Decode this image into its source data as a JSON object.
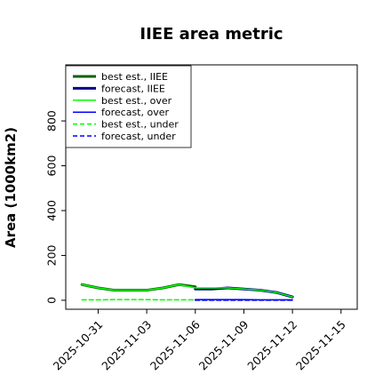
{
  "chart_data": {
    "type": "line",
    "title": "IIEE area metric",
    "xlabel": "",
    "ylabel": "Area (1000km2)",
    "x_ticks": [
      "2025-10-31",
      "2025-11-03",
      "2025-11-06",
      "2025-11-09",
      "2025-11-12",
      "2025-11-15"
    ],
    "highlighted_tick": "2025-11-06",
    "highlight_color": "#2ca02c",
    "xlim": [
      "2025-10-29",
      "2025-11-16"
    ],
    "y_ticks": [
      0,
      200,
      400,
      600,
      800
    ],
    "ylim": [
      -40,
      1050
    ],
    "grid": false,
    "legend_position": "upper-left",
    "series": [
      {
        "name": "best est., IIEE",
        "color": "#006400",
        "style": "solid",
        "weight": "thick",
        "x": [
          "2025-10-30",
          "2025-10-31",
          "2025-11-01",
          "2025-11-02",
          "2025-11-03",
          "2025-11-04",
          "2025-11-05",
          "2025-11-06"
        ],
        "y": [
          70,
          55,
          45,
          45,
          45,
          55,
          70,
          60
        ]
      },
      {
        "name": "forecast, IIEE",
        "color": "#00008b",
        "style": "solid",
        "weight": "thick",
        "x": [
          "2025-11-06",
          "2025-11-07",
          "2025-11-08",
          "2025-11-09",
          "2025-11-10",
          "2025-11-11",
          "2025-11-12"
        ],
        "y": [
          50,
          50,
          55,
          50,
          45,
          35,
          15
        ]
      },
      {
        "name": "best est., over",
        "color": "#00ff00",
        "style": "solid",
        "weight": "thin",
        "x": [
          "2025-10-30",
          "2025-10-31",
          "2025-11-01",
          "2025-11-02",
          "2025-11-03",
          "2025-11-04",
          "2025-11-05",
          "2025-11-06",
          "2025-11-07",
          "2025-11-08",
          "2025-11-09",
          "2025-11-10",
          "2025-11-11",
          "2025-11-12"
        ],
        "y": [
          70,
          55,
          45,
          45,
          45,
          55,
          70,
          55,
          55,
          55,
          50,
          45,
          35,
          15
        ]
      },
      {
        "name": "forecast, over",
        "color": "#0000ff",
        "style": "solid",
        "weight": "thin",
        "x": [
          "2025-11-06",
          "2025-11-07",
          "2025-11-08",
          "2025-11-09",
          "2025-11-10",
          "2025-11-11",
          "2025-11-12"
        ],
        "y": [
          3,
          3,
          3,
          3,
          2,
          2,
          2
        ]
      },
      {
        "name": "best est., under",
        "color": "#00ff00",
        "style": "dashed",
        "weight": "thin",
        "x": [
          "2025-10-30",
          "2025-10-31",
          "2025-11-01",
          "2025-11-02",
          "2025-11-03",
          "2025-11-04",
          "2025-11-05",
          "2025-11-06"
        ],
        "y": [
          2,
          2,
          3,
          3,
          3,
          2,
          2,
          2
        ]
      },
      {
        "name": "forecast, under",
        "color": "#0000ff",
        "style": "dashed",
        "weight": "thin",
        "x": [
          "2025-11-06",
          "2025-11-07",
          "2025-11-08",
          "2025-11-09",
          "2025-11-10",
          "2025-11-11",
          "2025-11-12"
        ],
        "y": [
          0,
          0,
          0,
          0,
          0,
          0,
          0
        ]
      }
    ]
  }
}
